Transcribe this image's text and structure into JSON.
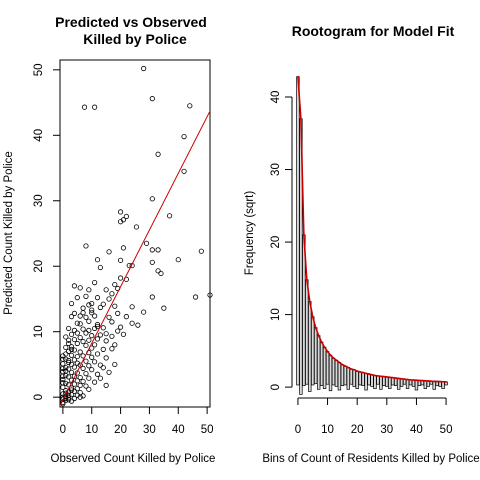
{
  "chart_data": [
    {
      "type": "scatter",
      "title": [
        "Predicted vs Observed",
        "Killed by Police"
      ],
      "xlabel": "Observed Count Killed by Police",
      "ylabel": "Predicted Count Killed by Police",
      "xlim": [
        -1,
        51
      ],
      "ylim": [
        -1.5,
        51.5
      ],
      "xticks": [
        0,
        10,
        20,
        30,
        40,
        50
      ],
      "yticks": [
        0,
        10,
        20,
        30,
        40,
        50
      ],
      "fit_line": {
        "color": "#cc0000",
        "points": [
          [
            -1,
            -1.3
          ],
          [
            51,
            43.7
          ]
        ]
      },
      "points": [
        [
          28,
          50.2
        ],
        [
          31,
          45.6
        ],
        [
          44,
          44.5
        ],
        [
          7.5,
          44.3
        ],
        [
          11,
          44.3
        ],
        [
          42,
          39.8
        ],
        [
          33,
          37.1
        ],
        [
          42,
          34.5
        ],
        [
          31,
          30.3
        ],
        [
          20,
          28.3
        ],
        [
          37,
          27.7
        ],
        [
          22,
          27.6
        ],
        [
          20,
          26.8
        ],
        [
          21,
          27.1
        ],
        [
          25.5,
          26
        ],
        [
          8,
          23.1
        ],
        [
          29,
          23.5
        ],
        [
          31,
          22.5
        ],
        [
          33,
          22.5
        ],
        [
          48,
          22.3
        ],
        [
          16,
          22.2
        ],
        [
          21,
          22.8
        ],
        [
          12,
          21
        ],
        [
          20,
          20.9
        ],
        [
          40,
          21
        ],
        [
          23,
          20.1
        ],
        [
          24,
          20.1
        ],
        [
          13,
          19.8
        ],
        [
          31,
          20.6
        ],
        [
          33,
          19.3
        ],
        [
          34,
          18.9
        ],
        [
          20,
          18.2
        ],
        [
          22,
          18
        ],
        [
          11,
          17.5
        ],
        [
          18,
          17.2
        ],
        [
          4,
          17
        ],
        [
          6,
          16.7
        ],
        [
          15,
          16.4
        ],
        [
          19,
          16.6
        ],
        [
          9,
          16.4
        ],
        [
          17,
          15.8
        ],
        [
          8,
          15.4
        ],
        [
          5,
          15.2
        ],
        [
          12,
          15.2
        ],
        [
          16,
          15
        ],
        [
          31,
          15.3
        ],
        [
          46,
          15.3
        ],
        [
          51,
          15.6
        ],
        [
          3,
          14.3
        ],
        [
          9,
          14.1
        ],
        [
          10,
          14.3
        ],
        [
          14,
          14.2
        ],
        [
          7,
          13.6
        ],
        [
          13,
          13.7
        ],
        [
          18,
          13.9
        ],
        [
          24,
          13.8
        ],
        [
          35,
          13.6
        ],
        [
          4,
          12.8
        ],
        [
          10,
          12.9
        ],
        [
          19,
          12.8
        ],
        [
          6,
          12.4
        ],
        [
          8,
          12.2
        ],
        [
          11,
          12.4
        ],
        [
          16,
          12.2
        ],
        [
          28,
          13
        ],
        [
          5,
          11.3
        ],
        [
          12,
          11.1
        ],
        [
          17,
          11.5
        ],
        [
          24,
          11.3
        ],
        [
          26,
          11
        ],
        [
          2,
          10.5
        ],
        [
          4,
          10.2
        ],
        [
          7,
          10.4
        ],
        [
          9,
          10.2
        ],
        [
          11,
          10.5
        ],
        [
          14,
          10.6
        ],
        [
          19,
          10.1
        ],
        [
          3,
          9.6
        ],
        [
          8,
          9.8
        ],
        [
          10,
          9.4
        ],
        [
          15,
          9.7
        ],
        [
          1,
          9.2
        ],
        [
          6,
          9.1
        ],
        [
          13,
          9.5
        ],
        [
          21,
          9.6
        ],
        [
          2,
          8.7
        ],
        [
          4,
          8.8
        ],
        [
          7,
          8.5
        ],
        [
          9,
          8.7
        ],
        [
          12,
          8.9
        ],
        [
          5,
          8.2
        ],
        [
          8,
          7.9
        ],
        [
          11,
          8
        ],
        [
          18,
          8
        ],
        [
          1,
          7.6
        ],
        [
          3,
          7.7
        ],
        [
          10,
          7.5
        ],
        [
          14,
          7.3
        ],
        [
          17,
          7.4
        ],
        [
          2,
          7
        ],
        [
          4,
          7.2
        ],
        [
          6,
          6.9
        ],
        [
          9,
          6.8
        ],
        [
          12,
          6.6
        ],
        [
          0,
          6.3
        ],
        [
          3,
          6.4
        ],
        [
          5,
          6.2
        ],
        [
          7,
          6.3
        ],
        [
          10,
          6.1
        ],
        [
          15,
          6
        ],
        [
          1,
          5.8
        ],
        [
          2,
          5.6
        ],
        [
          4,
          5.7
        ],
        [
          8,
          5.5
        ],
        [
          11,
          5.4
        ],
        [
          0,
          5.1
        ],
        [
          3,
          5
        ],
        [
          5,
          5.2
        ],
        [
          6,
          4.9
        ],
        [
          9,
          4.8
        ],
        [
          13,
          4.9
        ],
        [
          1,
          4.5
        ],
        [
          2,
          4.3
        ],
        [
          4,
          4.6
        ],
        [
          7,
          4.4
        ],
        [
          10,
          4.2
        ],
        [
          0,
          3.9
        ],
        [
          3,
          3.8
        ],
        [
          5,
          3.7
        ],
        [
          8,
          3.6
        ],
        [
          12,
          3.5
        ],
        [
          1,
          3.3
        ],
        [
          2,
          3.1
        ],
        [
          4,
          3.2
        ],
        [
          6,
          3
        ],
        [
          9,
          2.9
        ],
        [
          0,
          2.7
        ],
        [
          3,
          2.6
        ],
        [
          5,
          2.5
        ],
        [
          7,
          2.4
        ],
        [
          11,
          2.3
        ],
        [
          1,
          2.1
        ],
        [
          2,
          1.9
        ],
        [
          4,
          2
        ],
        [
          6,
          1.8
        ],
        [
          8,
          1.7
        ],
        [
          0,
          1.5
        ],
        [
          3,
          1.4
        ],
        [
          5,
          1.3
        ],
        [
          9,
          1.2
        ],
        [
          1,
          1
        ],
        [
          2,
          0.8
        ],
        [
          4,
          0.9
        ],
        [
          6,
          0.7
        ],
        [
          0,
          0.5
        ],
        [
          3,
          0.4
        ],
        [
          5,
          0.3
        ],
        [
          7,
          0.2
        ],
        [
          1,
          0.1
        ],
        [
          2,
          -0.1
        ],
        [
          0,
          -0.3
        ],
        [
          4,
          -0.2
        ],
        [
          1,
          -0.5
        ],
        [
          3,
          -0.6
        ],
        [
          0,
          -0.8
        ],
        [
          2,
          -0.4
        ],
        [
          6,
          0
        ],
        [
          0,
          0
        ],
        [
          1,
          -0.2
        ],
        [
          14,
          4.5
        ],
        [
          16,
          3.8
        ],
        [
          13,
          2.9
        ],
        [
          18,
          5
        ],
        [
          15,
          1.8
        ],
        [
          0,
          -1
        ],
        [
          2,
          0.3
        ],
        [
          1,
          0.6
        ],
        [
          3,
          1.1
        ],
        [
          0,
          2.2
        ],
        [
          0,
          3.2
        ],
        [
          1,
          4
        ],
        [
          0,
          4.4
        ],
        [
          2,
          5.3
        ],
        [
          0,
          5.8
        ],
        [
          1,
          6.6
        ],
        [
          3,
          7.3
        ],
        [
          2,
          8.2
        ],
        [
          5,
          9.8
        ],
        [
          6,
          11.2
        ],
        [
          3,
          12.3
        ],
        [
          7,
          12.9
        ],
        [
          9,
          11.6
        ],
        [
          10,
          13.3
        ],
        [
          12,
          10.8
        ],
        [
          15,
          8.6
        ],
        [
          17,
          9.3
        ],
        [
          20,
          10.7
        ],
        [
          22,
          12.3
        ]
      ]
    },
    {
      "type": "bar",
      "title": "Rootogram for Model Fit",
      "xlabel": "Bins of Count of Residents Killed by Police",
      "ylabel": "Frequency (sqrt)",
      "xlim": [
        -2,
        52
      ],
      "ylim": [
        -1.5,
        44
      ],
      "xticks": [
        0,
        10,
        20,
        30,
        40,
        50
      ],
      "yticks": [
        0,
        10,
        20,
        30,
        40
      ],
      "curve_color": "#cc0000",
      "expected": [
        42.8,
        37,
        21,
        14.8,
        11.8,
        9.7,
        8.2,
        7.1,
        6.2,
        5.5,
        4.9,
        4.4,
        4,
        3.7,
        3.4,
        3.1,
        2.9,
        2.7,
        2.5,
        2.4,
        2.2,
        2.1,
        2,
        1.9,
        1.8,
        1.7,
        1.6,
        1.55,
        1.5,
        1.45,
        1.4,
        1.35,
        1.3,
        1.25,
        1.2,
        1.15,
        1.1,
        1.05,
        1,
        0.98,
        0.95,
        0.92,
        0.9,
        0.87,
        0.85,
        0.82,
        0.8,
        0.78,
        0.76,
        0.74,
        0.72
      ],
      "bar_bottoms": [
        0.3,
        -1,
        0.2,
        0.4,
        -0.6,
        0.3,
        0.5,
        -0.3,
        0.2,
        -0.2,
        0.4,
        -0.5,
        0.3,
        0.1,
        -0.4,
        0.2,
        0.3,
        -0.3,
        0.4,
        0.1,
        -0.2,
        0.3,
        0.2,
        -0.4,
        0.3,
        0.1,
        -0.2,
        0.4,
        -0.3,
        0.2,
        0.1,
        -0.2,
        0.3,
        0.2,
        -0.3,
        0.1,
        0.4,
        -0.2,
        0.3,
        0.1,
        -0.4,
        0.2,
        0.3,
        -0.2,
        0.1,
        0.4,
        -0.3,
        0.2,
        0.1,
        -0.2,
        0.3
      ]
    }
  ]
}
